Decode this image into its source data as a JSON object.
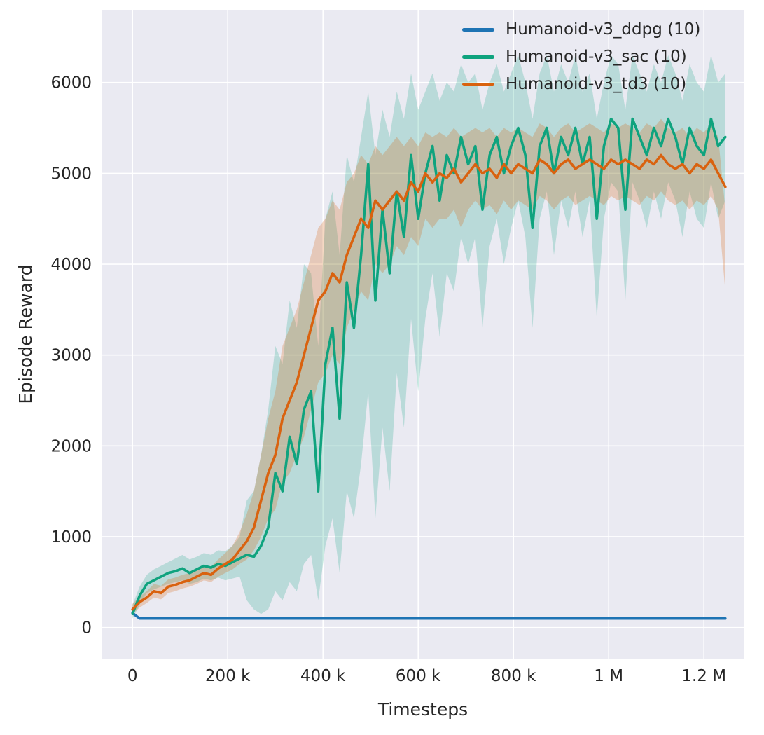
{
  "figure": {
    "background": "#ffffff",
    "plot_background": "#eaeaf2",
    "grid_color": "#ffffff",
    "text_color": "#262626"
  },
  "chart_data": {
    "type": "line",
    "title": "",
    "xlabel": "Timesteps",
    "ylabel": "Episode Reward",
    "grid": true,
    "legend_position": "upper right",
    "xlim": [
      -65000,
      1285000
    ],
    "ylim": [
      -350,
      6800
    ],
    "x_ticks": [
      {
        "value": 0,
        "label": "0"
      },
      {
        "value": 200000,
        "label": "200 k"
      },
      {
        "value": 400000,
        "label": "400 k"
      },
      {
        "value": 600000,
        "label": "600 k"
      },
      {
        "value": 800000,
        "label": "800 k"
      },
      {
        "value": 1000000,
        "label": "1 M"
      },
      {
        "value": 1200000,
        "label": "1.2 M"
      }
    ],
    "y_ticks": [
      {
        "value": 0,
        "label": "0"
      },
      {
        "value": 1000,
        "label": "1000"
      },
      {
        "value": 2000,
        "label": "2000"
      },
      {
        "value": 3000,
        "label": "3000"
      },
      {
        "value": 4000,
        "label": "4000"
      },
      {
        "value": 5000,
        "label": "5000"
      },
      {
        "value": 6000,
        "label": "6000"
      }
    ],
    "x": [
      0,
      15000,
      30000,
      45000,
      60000,
      75000,
      90000,
      105000,
      120000,
      135000,
      150000,
      165000,
      180000,
      195000,
      210000,
      225000,
      240000,
      255000,
      270000,
      285000,
      300000,
      315000,
      330000,
      345000,
      360000,
      375000,
      390000,
      405000,
      420000,
      435000,
      450000,
      465000,
      480000,
      495000,
      510000,
      525000,
      540000,
      555000,
      570000,
      585000,
      600000,
      615000,
      630000,
      645000,
      660000,
      675000,
      690000,
      705000,
      720000,
      735000,
      750000,
      765000,
      780000,
      795000,
      810000,
      825000,
      840000,
      855000,
      870000,
      885000,
      900000,
      915000,
      930000,
      945000,
      960000,
      975000,
      990000,
      1005000,
      1020000,
      1035000,
      1050000,
      1065000,
      1080000,
      1095000,
      1110000,
      1125000,
      1140000,
      1155000,
      1170000,
      1185000,
      1200000,
      1215000,
      1230000,
      1245000
    ],
    "series": [
      {
        "name": "Humanoid-v3_ddpg (10)",
        "color": "#1e74b4",
        "band_opacity": 0,
        "values": [
          160,
          100,
          100,
          100,
          100,
          100,
          100,
          100,
          100,
          100,
          100,
          100,
          100,
          100,
          100,
          100,
          100,
          100,
          100,
          100,
          100,
          100,
          100,
          100,
          100,
          100,
          100,
          100,
          100,
          100,
          100,
          100,
          100,
          100,
          100,
          100,
          100,
          100,
          100,
          100,
          100,
          100,
          100,
          100,
          100,
          100,
          100,
          100,
          100,
          100,
          100,
          100,
          100,
          100,
          100,
          100,
          100,
          100,
          100,
          100,
          100,
          100,
          100,
          100,
          100,
          100,
          100,
          100,
          100,
          100,
          100,
          100,
          100,
          100,
          100,
          100,
          100,
          100,
          100,
          100,
          100,
          100,
          100,
          100
        ]
      },
      {
        "name": "Humanoid-v3_sac (10)",
        "color": "#0fa37e",
        "band_opacity": 0.22,
        "values": [
          150,
          350,
          480,
          520,
          560,
          600,
          620,
          650,
          600,
          640,
          680,
          660,
          700,
          680,
          720,
          760,
          800,
          780,
          900,
          1100,
          1700,
          1500,
          2100,
          1800,
          2400,
          2600,
          1500,
          2900,
          3300,
          2300,
          3800,
          3300,
          4100,
          5100,
          3600,
          4600,
          3900,
          4800,
          4300,
          5200,
          4500,
          5000,
          5300,
          4700,
          5200,
          5000,
          5400,
          5100,
          5300,
          4600,
          5200,
          5400,
          5000,
          5300,
          5500,
          5200,
          4400,
          5300,
          5500,
          5000,
          5400,
          5200,
          5500,
          5100,
          5400,
          4500,
          5300,
          5600,
          5500,
          4600,
          5600,
          5400,
          5200,
          5500,
          5300,
          5600,
          5400,
          5100,
          5500,
          5300,
          5200,
          5600,
          5300,
          5400
        ],
        "lo": [
          100,
          250,
          380,
          420,
          450,
          480,
          500,
          520,
          480,
          500,
          540,
          520,
          550,
          520,
          540,
          560,
          300,
          200,
          150,
          200,
          400,
          300,
          500,
          400,
          700,
          800,
          300,
          900,
          1200,
          600,
          1500,
          1200,
          1800,
          2600,
          1200,
          2200,
          1500,
          2800,
          2200,
          3400,
          2600,
          3400,
          3900,
          3200,
          3900,
          3700,
          4300,
          4000,
          4300,
          3300,
          4200,
          4500,
          4000,
          4400,
          4700,
          4300,
          3300,
          4500,
          4800,
          4100,
          4700,
          4400,
          4800,
          4300,
          4700,
          3400,
          4500,
          4900,
          4800,
          3600,
          4900,
          4700,
          4400,
          4800,
          4500,
          4900,
          4700,
          4300,
          4800,
          4500,
          4400,
          4900,
          4500,
          4700
        ],
        "hi": [
          250,
          450,
          580,
          640,
          680,
          720,
          760,
          800,
          750,
          780,
          820,
          800,
          850,
          840,
          900,
          1000,
          1400,
          1500,
          1900,
          2400,
          3100,
          2900,
          3600,
          3300,
          4000,
          3900,
          3100,
          4500,
          4800,
          4100,
          5200,
          4900,
          5400,
          5900,
          5200,
          5700,
          5400,
          5900,
          5600,
          6100,
          5700,
          5900,
          6100,
          5800,
          6000,
          5900,
          6200,
          6000,
          6100,
          5700,
          6000,
          6200,
          5900,
          6100,
          6300,
          6000,
          5600,
          6100,
          6300,
          5900,
          6200,
          6000,
          6300,
          5900,
          6100,
          5600,
          6000,
          6300,
          6200,
          5700,
          6300,
          6100,
          5900,
          6200,
          6000,
          6300,
          6100,
          5800,
          6200,
          6000,
          5900,
          6300,
          6000,
          6100
        ]
      },
      {
        "name": "Humanoid-v3_td3 (10)",
        "color": "#d9620f",
        "band_opacity": 0.25,
        "values": [
          200,
          280,
          330,
          400,
          380,
          450,
          470,
          500,
          520,
          560,
          600,
          580,
          650,
          700,
          750,
          850,
          950,
          1100,
          1400,
          1700,
          1900,
          2300,
          2500,
          2700,
          3000,
          3300,
          3600,
          3700,
          3900,
          3800,
          4100,
          4300,
          4500,
          4400,
          4700,
          4600,
          4700,
          4800,
          4700,
          4900,
          4800,
          5000,
          4900,
          5000,
          4950,
          5050,
          4900,
          5000,
          5100,
          5000,
          5050,
          4950,
          5100,
          5000,
          5100,
          5050,
          5000,
          5150,
          5100,
          5000,
          5100,
          5150,
          5050,
          5100,
          5150,
          5100,
          5050,
          5150,
          5100,
          5150,
          5100,
          5050,
          5150,
          5100,
          5200,
          5100,
          5050,
          5100,
          5000,
          5100,
          5050,
          5150,
          5000,
          4850
        ],
        "lo": [
          150,
          220,
          270,
          330,
          310,
          380,
          400,
          430,
          450,
          480,
          520,
          500,
          560,
          600,
          640,
          700,
          750,
          850,
          1000,
          1200,
          1300,
          1600,
          1700,
          1900,
          2100,
          2400,
          2700,
          2800,
          3000,
          2900,
          3300,
          3500,
          3700,
          3600,
          4000,
          3900,
          4000,
          4200,
          4100,
          4300,
          4200,
          4500,
          4400,
          4500,
          4500,
          4600,
          4400,
          4600,
          4700,
          4600,
          4650,
          4550,
          4700,
          4600,
          4700,
          4650,
          4600,
          4750,
          4700,
          4600,
          4700,
          4750,
          4650,
          4700,
          4750,
          4700,
          4650,
          4750,
          4700,
          4750,
          4700,
          4650,
          4750,
          4700,
          4800,
          4700,
          4650,
          4700,
          4600,
          4700,
          4650,
          4750,
          4600,
          3700
        ],
        "hi": [
          260,
          340,
          400,
          480,
          460,
          530,
          550,
          580,
          600,
          650,
          690,
          670,
          750,
          820,
          900,
          1050,
          1250,
          1500,
          1900,
          2300,
          2600,
          3100,
          3300,
          3500,
          3800,
          4100,
          4400,
          4500,
          4700,
          4600,
          4900,
          5000,
          5200,
          5100,
          5300,
          5200,
          5300,
          5400,
          5300,
          5400,
          5300,
          5450,
          5400,
          5450,
          5400,
          5500,
          5400,
          5450,
          5500,
          5450,
          5500,
          5400,
          5500,
          5450,
          5500,
          5450,
          5400,
          5550,
          5500,
          5400,
          5500,
          5550,
          5450,
          5500,
          5550,
          5500,
          5450,
          5550,
          5500,
          5550,
          5500,
          5450,
          5550,
          5500,
          5600,
          5500,
          5450,
          5500,
          5400,
          5500,
          5450,
          5550,
          5400,
          4600
        ]
      }
    ]
  }
}
